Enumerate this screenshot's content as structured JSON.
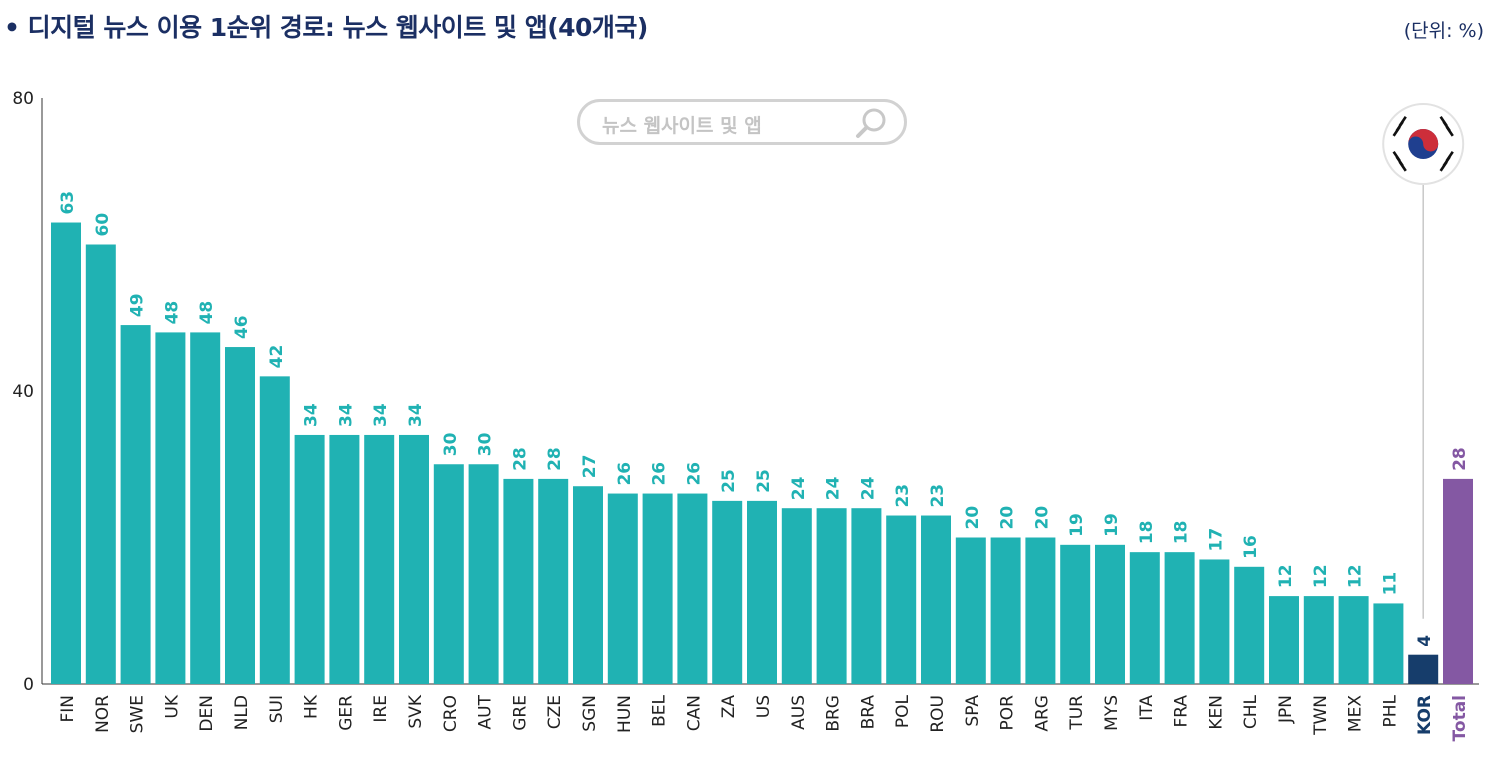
{
  "title": "• 디지털 뉴스 이용 1순위 경로: 뉴스 웹사이트 및 앱(40개국)",
  "unit": "(단위: %)",
  "search": {
    "placeholder": "뉴스 웹사이트 및 앱",
    "icon": "magnifier-icon"
  },
  "flag_icon": "korea-flag-icon",
  "colors": {
    "default_bar": "#20b2b3",
    "kor_bar": "#163d6b",
    "total_bar": "#8458a3",
    "title": "#1b2f63"
  },
  "chart_data": {
    "type": "bar",
    "categories": [
      "FIN",
      "NOR",
      "SWE",
      "UK",
      "DEN",
      "NLD",
      "SUI",
      "HK",
      "GER",
      "IRE",
      "SVK",
      "CRO",
      "AUT",
      "GRE",
      "CZE",
      "SGN",
      "HUN",
      "BEL",
      "CAN",
      "ZA",
      "US",
      "AUS",
      "BRG",
      "BRA",
      "POL",
      "ROU",
      "SPA",
      "POR",
      "ARG",
      "TUR",
      "MYS",
      "ITA",
      "FRA",
      "KEN",
      "CHL",
      "JPN",
      "TWN",
      "MEX",
      "PHL",
      "KOR",
      "Total"
    ],
    "values": [
      63,
      60,
      49,
      48,
      48,
      46,
      42,
      34,
      34,
      34,
      34,
      30,
      30,
      28,
      28,
      27,
      26,
      26,
      26,
      25,
      25,
      24,
      24,
      24,
      23,
      23,
      20,
      20,
      20,
      19,
      19,
      18,
      18,
      17,
      16,
      12,
      12,
      12,
      11,
      4,
      28
    ],
    "highlight": {
      "KOR": "#163d6b",
      "Total": "#8458a3"
    },
    "ylim": [
      0,
      80
    ],
    "yticks": [
      0,
      40,
      80
    ],
    "grid": false,
    "xlabel": "",
    "ylabel": ""
  }
}
